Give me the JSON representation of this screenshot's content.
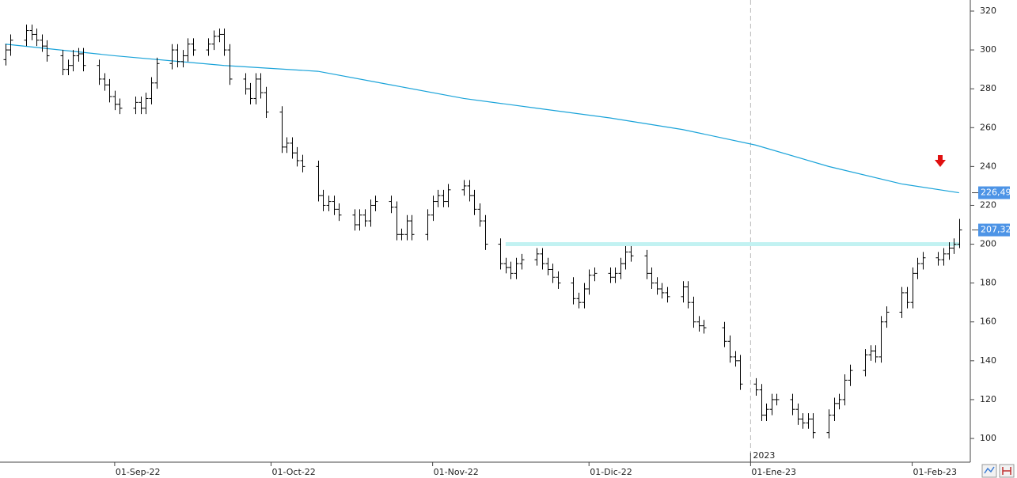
{
  "chart_data": {
    "type": "ohlc",
    "x": [
      "2022-08-11",
      "2022-08-12",
      "2022-08-15",
      "2022-08-16",
      "2022-08-17",
      "2022-08-18",
      "2022-08-19",
      "2022-08-22",
      "2022-08-23",
      "2022-08-24",
      "2022-08-25",
      "2022-08-26",
      "2022-08-29",
      "2022-08-30",
      "2022-08-31",
      "2022-09-01",
      "2022-09-02",
      "2022-09-05",
      "2022-09-06",
      "2022-09-07",
      "2022-09-08",
      "2022-09-09",
      "2022-09-12",
      "2022-09-13",
      "2022-09-14",
      "2022-09-15",
      "2022-09-16",
      "2022-09-19",
      "2022-09-20",
      "2022-09-21",
      "2022-09-22",
      "2022-09-23",
      "2022-09-26",
      "2022-09-27",
      "2022-09-28",
      "2022-09-29",
      "2022-09-30",
      "2022-10-03",
      "2022-10-04",
      "2022-10-05",
      "2022-10-06",
      "2022-10-07",
      "2022-10-10",
      "2022-10-11",
      "2022-10-12",
      "2022-10-13",
      "2022-10-14",
      "2022-10-17",
      "2022-10-18",
      "2022-10-19",
      "2022-10-20",
      "2022-10-21",
      "2022-10-24",
      "2022-10-25",
      "2022-10-26",
      "2022-10-27",
      "2022-10-28",
      "2022-10-31",
      "2022-11-01",
      "2022-11-02",
      "2022-11-03",
      "2022-11-04",
      "2022-11-07",
      "2022-11-08",
      "2022-11-09",
      "2022-11-10",
      "2022-11-11",
      "2022-11-14",
      "2022-11-15",
      "2022-11-16",
      "2022-11-17",
      "2022-11-18",
      "2022-11-21",
      "2022-11-22",
      "2022-11-23",
      "2022-11-24",
      "2022-11-25",
      "2022-11-28",
      "2022-11-29",
      "2022-11-30",
      "2022-12-01",
      "2022-12-02",
      "2022-12-05",
      "2022-12-06",
      "2022-12-07",
      "2022-12-08",
      "2022-12-09",
      "2022-12-12",
      "2022-12-13",
      "2022-12-14",
      "2022-12-15",
      "2022-12-16",
      "2022-12-19",
      "2022-12-20",
      "2022-12-21",
      "2022-12-22",
      "2022-12-23",
      "2022-12-27",
      "2022-12-28",
      "2022-12-29",
      "2022-12-30",
      "2023-01-02",
      "2023-01-03",
      "2023-01-04",
      "2023-01-05",
      "2023-01-06",
      "2023-01-09",
      "2023-01-10",
      "2023-01-11",
      "2023-01-12",
      "2023-01-13",
      "2023-01-16",
      "2023-01-17",
      "2023-01-18",
      "2023-01-19",
      "2023-01-20",
      "2023-01-23",
      "2023-01-24",
      "2023-01-25",
      "2023-01-26",
      "2023-01-27",
      "2023-01-30",
      "2023-01-31",
      "2023-02-01",
      "2023-02-02",
      "2023-02-03",
      "2023-02-06",
      "2023-02-07",
      "2023-02-08",
      "2023-02-09",
      "2023-02-10"
    ],
    "open": [
      295,
      300,
      305,
      310,
      308,
      305,
      302,
      297,
      290,
      292,
      297,
      298,
      292,
      285,
      282,
      276,
      272,
      270,
      273,
      270,
      275,
      283,
      293,
      300,
      294,
      297,
      303,
      300,
      303,
      307,
      308,
      300,
      285,
      280,
      275,
      285,
      278,
      268,
      250,
      252,
      247,
      243,
      240,
      225,
      220,
      222,
      218,
      215,
      210,
      215,
      212,
      220,
      222,
      219,
      205,
      205,
      212,
      205,
      215,
      222,
      225,
      222,
      228,
      230,
      225,
      218,
      212,
      200,
      190,
      188,
      185,
      190,
      192,
      195,
      190,
      187,
      183,
      180,
      172,
      170,
      177,
      184,
      185,
      183,
      185,
      190,
      196,
      194,
      185,
      180,
      177,
      175,
      173,
      178,
      170,
      160,
      158,
      157,
      150,
      142,
      140,
      128,
      125,
      112,
      115,
      120,
      120,
      115,
      110,
      108,
      110,
      103,
      112,
      118,
      120,
      130,
      135,
      143,
      145,
      142,
      160,
      165,
      175,
      170,
      185,
      190,
      193,
      192,
      195,
      198,
      200
    ],
    "high": [
      303,
      308,
      313,
      313,
      311,
      308,
      305,
      300,
      295,
      300,
      301,
      301,
      295,
      288,
      285,
      279,
      275,
      276,
      276,
      278,
      286,
      296,
      303,
      303,
      300,
      306,
      306,
      306,
      310,
      311,
      311,
      303,
      288,
      283,
      288,
      288,
      281,
      271,
      255,
      255,
      250,
      246,
      243,
      228,
      225,
      225,
      221,
      218,
      218,
      218,
      223,
      225,
      225,
      222,
      208,
      215,
      215,
      218,
      225,
      228,
      228,
      231,
      233,
      233,
      228,
      221,
      215,
      203,
      193,
      191,
      193,
      195,
      198,
      198,
      193,
      190,
      186,
      183,
      175,
      180,
      187,
      188,
      188,
      188,
      193,
      199,
      199,
      197,
      188,
      183,
      180,
      178,
      181,
      181,
      173,
      163,
      161,
      160,
      153,
      145,
      143,
      131,
      128,
      118,
      123,
      123,
      123,
      118,
      113,
      113,
      113,
      115,
      121,
      123,
      133,
      138,
      146,
      148,
      148,
      163,
      168,
      178,
      178,
      188,
      193,
      196,
      196,
      198,
      201,
      203,
      213
    ],
    "low": [
      292,
      297,
      302,
      305,
      302,
      299,
      294,
      287,
      287,
      289,
      294,
      289,
      282,
      279,
      273,
      269,
      267,
      267,
      267,
      267,
      272,
      280,
      290,
      291,
      291,
      294,
      297,
      297,
      300,
      304,
      297,
      282,
      277,
      272,
      272,
      275,
      265,
      247,
      247,
      244,
      240,
      237,
      222,
      217,
      217,
      215,
      212,
      207,
      207,
      209,
      209,
      217,
      216,
      202,
      202,
      202,
      202,
      202,
      212,
      219,
      219,
      219,
      225,
      222,
      215,
      209,
      197,
      187,
      185,
      182,
      182,
      187,
      189,
      187,
      184,
      180,
      177,
      169,
      167,
      167,
      174,
      181,
      180,
      180,
      182,
      187,
      191,
      182,
      177,
      174,
      172,
      170,
      170,
      167,
      157,
      155,
      154,
      147,
      139,
      137,
      125,
      122,
      109,
      109,
      112,
      117,
      112,
      107,
      105,
      105,
      100,
      100,
      109,
      115,
      117,
      127,
      132,
      140,
      139,
      139,
      157,
      162,
      167,
      167,
      182,
      187,
      189,
      189,
      192,
      195,
      198
    ],
    "close": [
      300,
      305,
      310,
      308,
      305,
      302,
      297,
      290,
      292,
      297,
      298,
      292,
      285,
      282,
      276,
      272,
      270,
      273,
      270,
      275,
      283,
      293,
      300,
      294,
      297,
      303,
      300,
      303,
      307,
      308,
      300,
      285,
      280,
      275,
      285,
      278,
      268,
      250,
      252,
      247,
      243,
      240,
      225,
      220,
      222,
      218,
      215,
      210,
      215,
      212,
      220,
      222,
      219,
      205,
      205,
      212,
      205,
      215,
      222,
      225,
      222,
      228,
      230,
      225,
      218,
      212,
      200,
      190,
      188,
      185,
      190,
      192,
      195,
      190,
      187,
      183,
      180,
      172,
      170,
      177,
      184,
      185,
      183,
      185,
      190,
      196,
      194,
      185,
      180,
      177,
      175,
      173,
      178,
      170,
      160,
      158,
      157,
      150,
      142,
      140,
      128,
      125,
      112,
      115,
      120,
      120,
      115,
      110,
      108,
      110,
      103,
      112,
      118,
      120,
      130,
      135,
      143,
      145,
      142,
      160,
      165,
      175,
      170,
      185,
      190,
      193,
      192,
      195,
      198,
      200,
      207.32
    ],
    "color": "#000000",
    "moving_average": {
      "color": "#1aa3d9",
      "x": [
        "2022-08-11",
        "2022-09-01",
        "2022-09-22",
        "2022-10-10",
        "2022-10-24",
        "2022-11-07",
        "2022-11-21",
        "2022-12-05",
        "2022-12-19",
        "2023-01-02",
        "2023-01-16",
        "2023-01-30",
        "2023-02-10"
      ],
      "values": [
        303,
        297,
        292,
        289,
        282,
        275,
        270,
        265,
        259,
        251,
        240,
        231,
        226.49
      ]
    },
    "level_line": {
      "value": 200,
      "x": [
        "2022-11-15",
        "2023-02-10"
      ],
      "color": "#c2f2f2"
    },
    "price_labels": [
      {
        "value": 226.49,
        "label": "226,49",
        "color": "#4d94e6"
      },
      {
        "value": 207.32,
        "label": "207,32",
        "color": "#4d94e6"
      }
    ],
    "xlim": [
      "2022-08-10",
      "2023-02-12"
    ],
    "xticks": [
      {
        "value": "2022-09-01",
        "label": "01-Sep-22"
      },
      {
        "value": "2022-10-01",
        "label": "01-Oct-22"
      },
      {
        "value": "2022-11-01",
        "label": "01-Nov-22"
      },
      {
        "value": "2022-12-01",
        "label": "01-Dic-22"
      },
      {
        "value": "2023-01-01",
        "label": "01-Ene-23"
      },
      {
        "value": "2023-02-01",
        "label": "01-Feb-23"
      }
    ],
    "year_marker": {
      "value": "2023-01-01",
      "label": "2023"
    },
    "ylim": [
      88.2,
      325.7
    ],
    "yticks": [
      100,
      120,
      140,
      160,
      180,
      200,
      220,
      240,
      260,
      280,
      300,
      320
    ]
  }
}
